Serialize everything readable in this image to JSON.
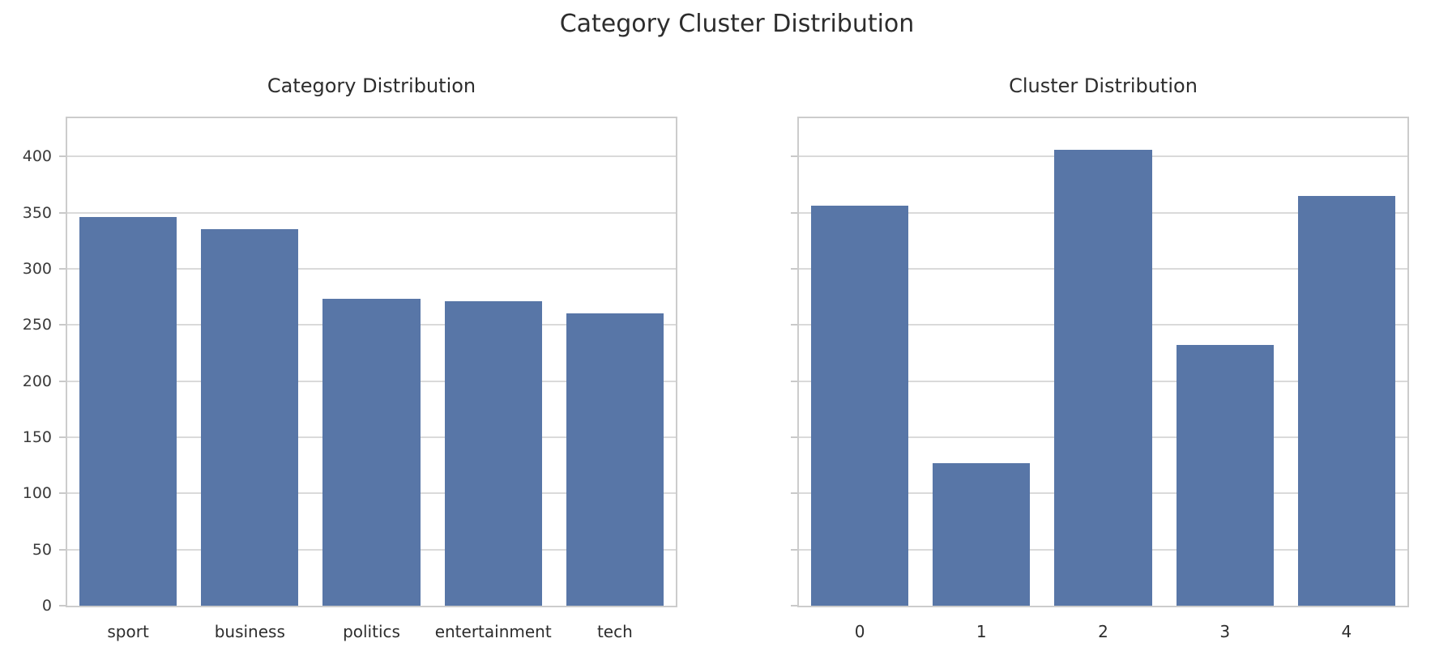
{
  "figure": {
    "suptitle": "Category Cluster Distribution"
  },
  "colors": {
    "bar": "#5876a7",
    "grid": "#dadada",
    "spine": "#cccccc",
    "text": "#2d2d2d"
  },
  "chart_data": [
    {
      "type": "bar",
      "title": "Category Distribution",
      "categories": [
        "sport",
        "business",
        "politics",
        "entertainment",
        "tech"
      ],
      "values": [
        346,
        335,
        273,
        271,
        260
      ],
      "xlabel": "",
      "ylabel": "",
      "ylim": [
        0,
        434
      ],
      "yticks": [
        0,
        50,
        100,
        150,
        200,
        250,
        300,
        350,
        400
      ],
      "ytick_labels_visible": true,
      "grid": true,
      "legend": null,
      "bar_color": "#5876a7"
    },
    {
      "type": "bar",
      "title": "Cluster Distribution",
      "categories": [
        "0",
        "1",
        "2",
        "3",
        "4"
      ],
      "values": [
        356,
        127,
        406,
        232,
        365
      ],
      "xlabel": "",
      "ylabel": "",
      "ylim": [
        0,
        434
      ],
      "yticks": [
        0,
        50,
        100,
        150,
        200,
        250,
        300,
        350,
        400
      ],
      "ytick_labels_visible": false,
      "grid": true,
      "legend": null,
      "bar_color": "#5876a7"
    }
  ]
}
